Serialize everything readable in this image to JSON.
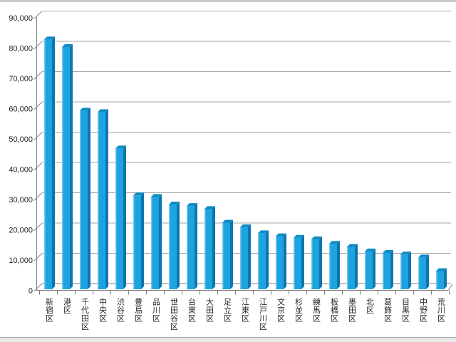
{
  "window": {
    "background": "#ffffff",
    "top_band_color": "#c9c9c9",
    "bottom_band_color": "#e9e9e9",
    "bottom_band_border": "#a6a6a6"
  },
  "chart_data": {
    "type": "bar",
    "style": "3d-column",
    "title": "",
    "xlabel": "",
    "ylabel": "",
    "categories": [
      "新宿区",
      "港区",
      "千代田区",
      "中央区",
      "渋谷区",
      "豊島区",
      "品川区",
      "世田谷区",
      "台東区",
      "大田区",
      "足立区",
      "江東区",
      "江戸川区",
      "文京区",
      "杉並区",
      "練馬区",
      "板橋区",
      "墨田区",
      "北区",
      "葛飾区",
      "目黒区",
      "中野区",
      "荒川区"
    ],
    "values": [
      82500,
      80000,
      59000,
      58500,
      46500,
      31000,
      30500,
      28000,
      27500,
      26500,
      22000,
      20500,
      18500,
      17500,
      17000,
      16500,
      15000,
      14000,
      12500,
      12000,
      11500,
      10500,
      6000
    ],
    "ylim": [
      0,
      90000
    ],
    "ytick_step": 10000,
    "ytick_labels": [
      "0",
      "10,000",
      "20,000",
      "30,000",
      "40,000",
      "50,000",
      "60,000",
      "70,000",
      "80,000",
      "90,000"
    ],
    "grid": true,
    "legend": false,
    "colors": {
      "bar_face": "#1da3e0",
      "bar_side": "#0d76ad",
      "bar_top": "#0f8ac4",
      "bar_highlight": "#74c9ee",
      "gridline": "#a6a6a6",
      "axis": "#808080",
      "label": "#262626"
    }
  }
}
